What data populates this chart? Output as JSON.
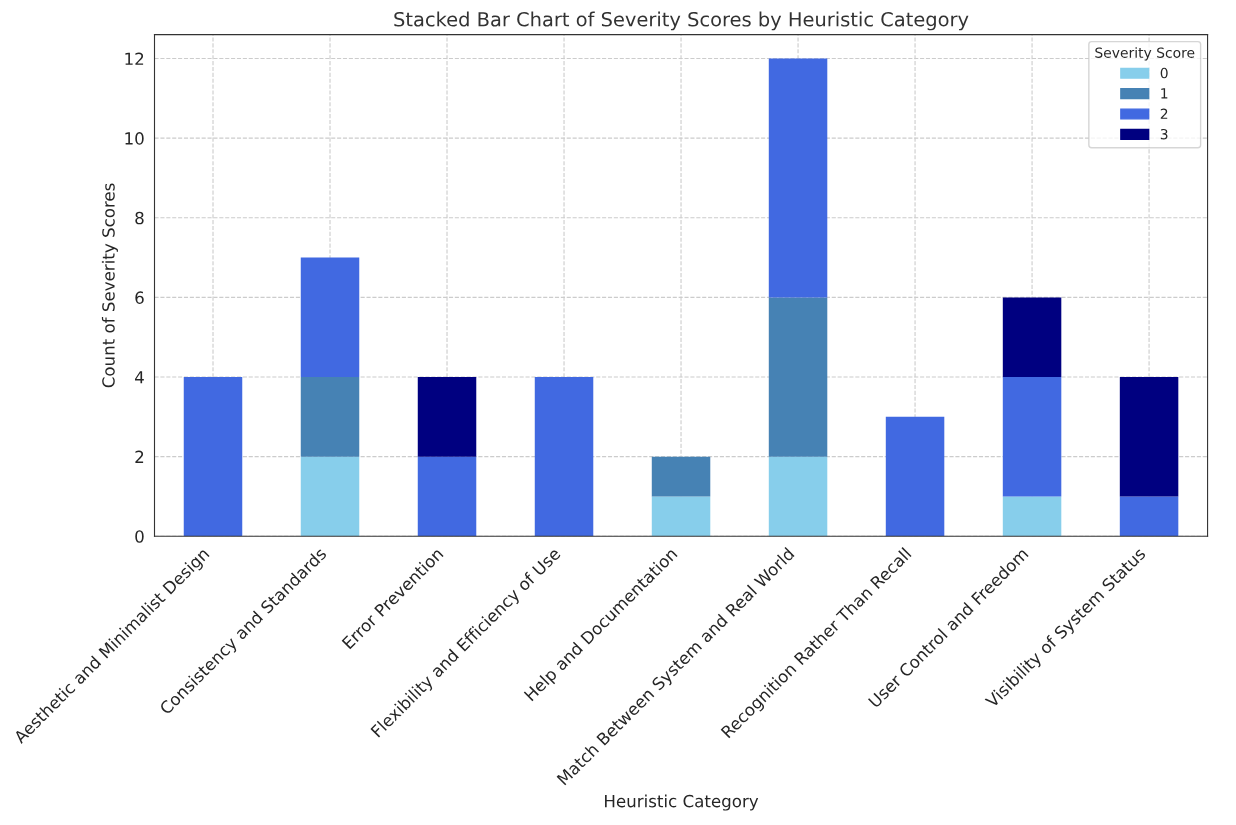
{
  "chart_data": {
    "type": "bar",
    "stacked": true,
    "title": "Stacked Bar Chart of Severity Scores by Heuristic Category",
    "xlabel": "Heuristic Category",
    "ylabel": "Count of Severity Scores",
    "legend_title": "Severity Score",
    "legend": "top right",
    "grid": true,
    "categories": [
      "Aesthetic and Minimalist Design",
      "Consistency and Standards",
      "Error Prevention",
      "Flexibility and Efficiency of Use",
      "Help and Documentation",
      "Match Between System and Real World",
      "Recognition Rather Than Recall",
      "User Control and Freedom",
      "Visibility of System Status"
    ],
    "series": [
      {
        "name": "0",
        "color": "#87ceeb",
        "values": [
          0,
          2,
          0,
          0,
          1,
          2,
          0,
          1,
          0
        ]
      },
      {
        "name": "1",
        "color": "#4682b4",
        "values": [
          0,
          2,
          0,
          0,
          1,
          4,
          0,
          0,
          0
        ]
      },
      {
        "name": "2",
        "color": "#4169e1",
        "values": [
          4,
          3,
          2,
          4,
          0,
          6,
          3,
          3,
          1
        ]
      },
      {
        "name": "3",
        "color": "#000080",
        "values": [
          0,
          0,
          2,
          0,
          0,
          0,
          0,
          2,
          3
        ]
      }
    ],
    "ylim": [
      0,
      12.6
    ],
    "yticks": [
      0,
      2,
      4,
      6,
      8,
      10,
      12
    ]
  }
}
